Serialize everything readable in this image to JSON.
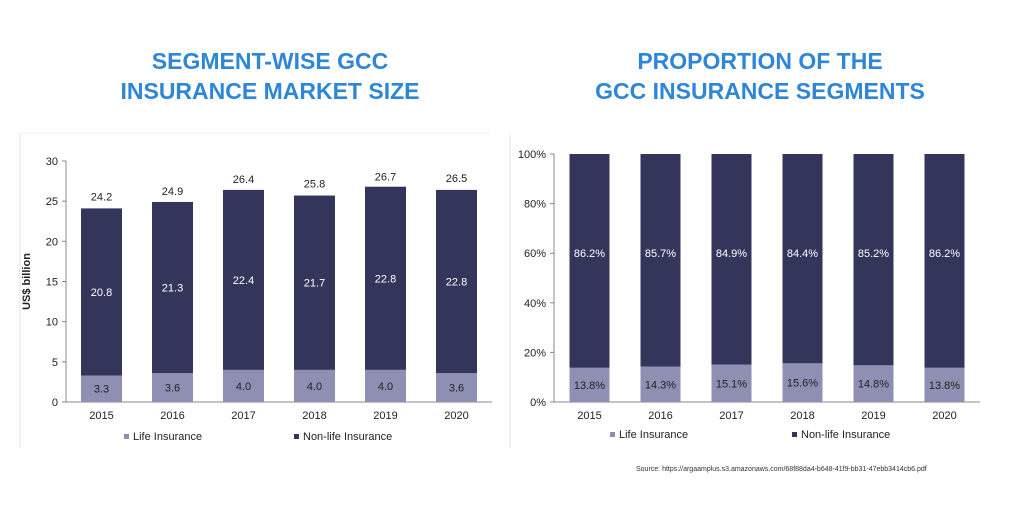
{
  "left_title": [
    "SEGMENT-WISE GCC",
    "INSURANCE MARKET SIZE"
  ],
  "right_title": [
    "PROPORTION OF THE",
    "GCC INSURANCE SEGMENTS"
  ],
  "source": "Source:  https://argaamplus.s3.amazonaws.com/68f88da4-b648-41f9-bb31-47ebb3414cb6.pdf",
  "colors": {
    "life": "#8e8fb2",
    "nonlife": "#34355b",
    "title": "#2e86d6"
  },
  "chart_data": [
    {
      "type": "bar",
      "stacked": true,
      "categories": [
        "2015",
        "2016",
        "2017",
        "2018",
        "2019",
        "2020"
      ],
      "series": [
        {
          "name": "Life Insurance",
          "values": [
            3.3,
            3.6,
            4.0,
            4.0,
            4.0,
            3.6
          ],
          "labels": [
            "3.3",
            "3.6",
            "4.0",
            "4.0",
            "4.0",
            "3.6"
          ]
        },
        {
          "name": "Non-life Insurance",
          "values": [
            20.8,
            21.3,
            22.4,
            21.7,
            22.8,
            22.8
          ],
          "labels": [
            "20.8",
            "21.3",
            "22.4",
            "21.7",
            "22.8",
            "22.8"
          ]
        }
      ],
      "totals": [
        24.2,
        24.9,
        26.4,
        25.8,
        26.7,
        26.5
      ],
      "total_labels": [
        "24.2",
        "24.9",
        "26.4",
        "25.8",
        "26.7",
        "26.5"
      ],
      "ylabel": "US$ billion",
      "ylim": [
        0,
        30
      ],
      "yticks": [
        "0",
        "5",
        "10",
        "15",
        "20",
        "25",
        "30"
      ],
      "legend": "bottom"
    },
    {
      "type": "bar",
      "stacked": true,
      "percent": true,
      "categories": [
        "2015",
        "2016",
        "2017",
        "2018",
        "2019",
        "2020"
      ],
      "series": [
        {
          "name": "Life Insurance",
          "values": [
            13.8,
            14.3,
            15.1,
            15.6,
            14.8,
            13.8
          ],
          "labels": [
            "13.8%",
            "14.3%",
            "15.1%",
            "15.6%",
            "14.8%",
            "13.8%"
          ]
        },
        {
          "name": "Non-life Insurance",
          "values": [
            86.2,
            85.7,
            84.9,
            84.4,
            85.2,
            86.2
          ],
          "labels": [
            "86.2%",
            "85.7%",
            "84.9%",
            "84.4%",
            "85.2%",
            "86.2%"
          ]
        }
      ],
      "ylim": [
        0,
        100
      ],
      "yticks": [
        "0%",
        "20%",
        "40%",
        "60%",
        "80%",
        "100%"
      ],
      "legend": "bottom"
    }
  ]
}
